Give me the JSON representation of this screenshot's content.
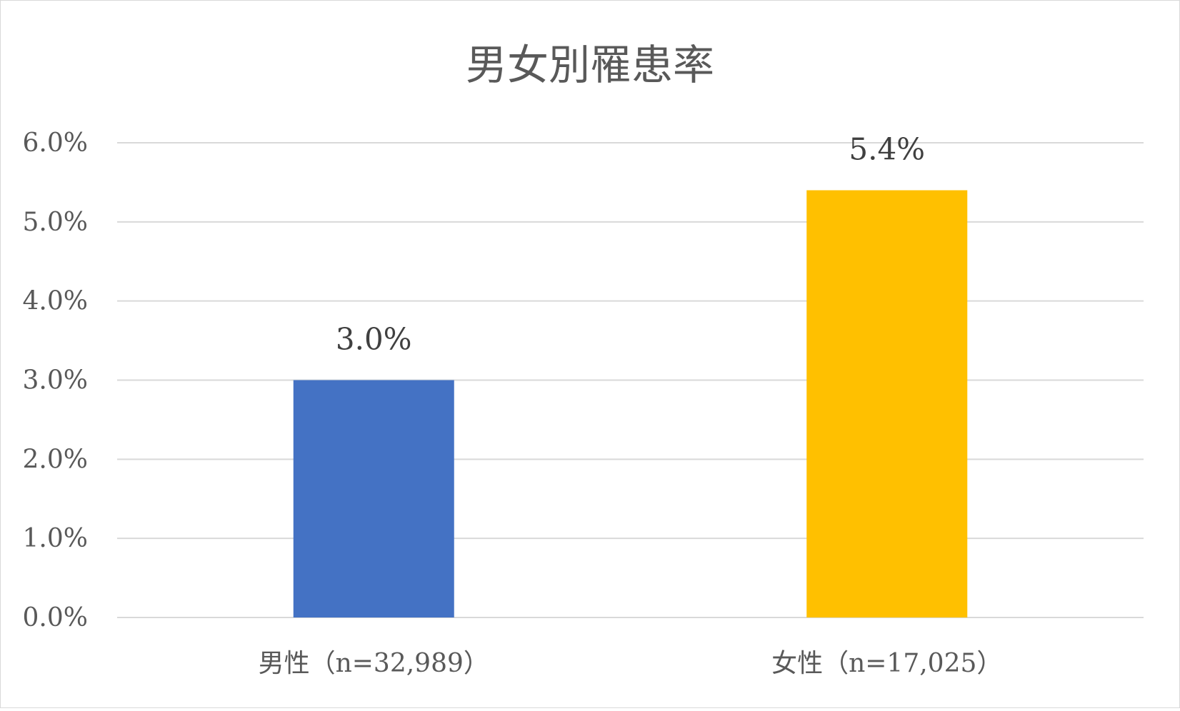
{
  "chart_data": {
    "type": "bar",
    "title": "男女別罹患率",
    "categories": [
      "男性（n=32,989）",
      "女性（n=17,025）"
    ],
    "values": [
      3.0,
      5.4
    ],
    "value_labels": [
      "3.0%",
      "5.4%"
    ],
    "colors": [
      "#4472C4",
      "#FFC000"
    ],
    "ylim": [
      0,
      6
    ],
    "yticks": [
      "0.0%",
      "1.0%",
      "2.0%",
      "3.0%",
      "4.0%",
      "5.0%",
      "6.0%"
    ],
    "grid": true,
    "legend": "none"
  }
}
